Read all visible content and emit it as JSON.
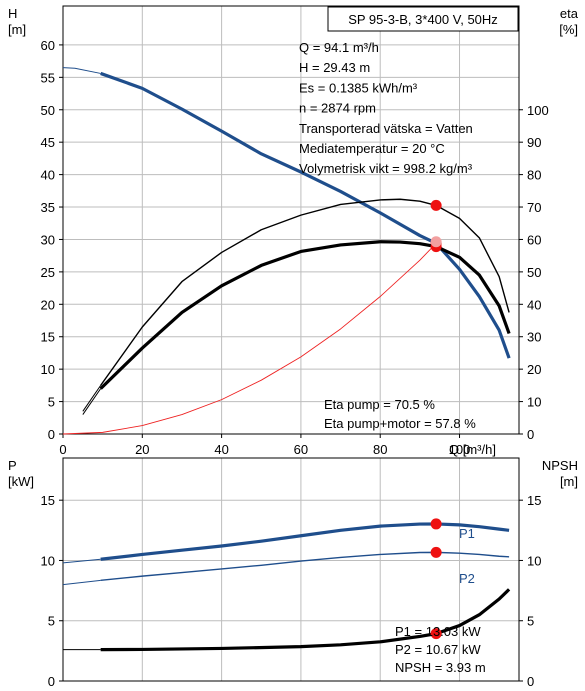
{
  "chart_data": [
    {
      "type": "line",
      "title": "SP 95-3-B, 3*400 V, 50Hz",
      "xlabel": "Q [m³/h]",
      "ylabel_left": "H",
      "ylabel_left_unit": "[m]",
      "ylabel_right": "eta",
      "ylabel_right_unit": "[%]",
      "xlim": [
        0,
        115
      ],
      "ylim_left": [
        0,
        66
      ],
      "ylim_right": [
        0,
        132
      ],
      "xticks": [
        0,
        20,
        40,
        60,
        80,
        100
      ],
      "yticks_left": [
        0,
        5,
        10,
        15,
        20,
        25,
        30,
        35,
        40,
        45,
        50,
        55,
        60
      ],
      "yticks_right": [
        0,
        10,
        20,
        30,
        40,
        50,
        60,
        70,
        80,
        90,
        100
      ],
      "grid": true,
      "series": [
        {
          "key": "head",
          "axis": "left",
          "color": "#1f4e8c",
          "width": 3.2,
          "x": [
            0,
            3,
            9.5,
            20,
            30,
            40,
            50,
            60,
            70,
            80,
            90,
            94.1,
            100,
            105,
            110,
            112.5
          ],
          "y": [
            56.5,
            56.4,
            55.6,
            53.3,
            50.1,
            46.7,
            43.2,
            40.4,
            37.4,
            34.1,
            30.6,
            29.4,
            25.4,
            21.2,
            16.0,
            11.7
          ],
          "dashed_until": 9.5
        },
        {
          "key": "eta_pump",
          "axis": "right",
          "color": "#000000",
          "width": 1.4,
          "x": [
            5,
            9.5,
            20,
            30,
            40,
            50,
            60,
            70,
            80,
            85,
            90,
            94.1,
            100,
            105,
            110,
            112.5
          ],
          "y": [
            7,
            15,
            33,
            47,
            56,
            63,
            67.5,
            70.8,
            72.2,
            72.4,
            71.8,
            70.5,
            66.5,
            60.5,
            48.5,
            37.5
          ],
          "dashed_until": 9.5
        },
        {
          "key": "eta_pump_motor",
          "axis": "right",
          "color": "#000000",
          "width": 3.2,
          "x": [
            5,
            9.5,
            20,
            30,
            40,
            50,
            60,
            70,
            80,
            85,
            90,
            94.1,
            100,
            105,
            110,
            112.5
          ],
          "y": [
            6,
            14,
            26.5,
            37.5,
            45.7,
            52,
            56.3,
            58.3,
            59.3,
            59.2,
            58.7,
            57.8,
            54.5,
            49,
            39.5,
            31
          ],
          "dashed_until": 9.5
        },
        {
          "key": "system_curve",
          "axis": "left",
          "color": "#ee2222",
          "width": 0.9,
          "x": [
            0,
            10,
            20,
            30,
            40,
            50,
            60,
            70,
            80,
            90,
            94.1
          ],
          "y": [
            0,
            0.25,
            1.3,
            3.0,
            5.3,
            8.3,
            11.9,
            16.2,
            21.2,
            26.8,
            29.4
          ]
        }
      ],
      "markers": [
        {
          "x": 94.1,
          "y": 29.43,
          "axis": "left",
          "color": "#ee1111"
        },
        {
          "x": 94.1,
          "y": 70.5,
          "axis": "right",
          "color": "#ee1111"
        },
        {
          "x": 94.1,
          "y": 57.8,
          "axis": "right",
          "color": "#ee1111"
        },
        {
          "x": 94.1,
          "y": 59.3,
          "axis": "right",
          "color": "#f2a0a0"
        }
      ],
      "info": {
        "q": "Q = 94.1 m³/h",
        "h": "H = 29.43 m",
        "es": "Es = 0.1385 kWh/m³",
        "n": "n = 2874 rpm",
        "liquid": "Transporterad vätska = Vatten",
        "temp": "Mediatemperatur = 20 °C",
        "density": "Volymetrisk vikt = 998.2 kg/m³",
        "eta_pump": "Eta pump = 70.5 %",
        "eta_pump_motor": "Eta pump+motor = 57.8 %"
      }
    },
    {
      "type": "line",
      "ylabel_left": "P",
      "ylabel_left_unit": "[kW]",
      "ylabel_right": "NPSH",
      "ylabel_right_unit": "[m]",
      "xlim": [
        0,
        115
      ],
      "ylim_left": [
        0,
        18.5
      ],
      "ylim_right": [
        0,
        18.5
      ],
      "xticks": [
        0,
        20,
        40,
        60,
        80,
        100
      ],
      "yticks_left": [
        0,
        5,
        10,
        15
      ],
      "yticks_right": [
        0,
        5,
        10,
        15
      ],
      "grid": true,
      "series": [
        {
          "key": "P1",
          "name": "P1",
          "axis": "left",
          "color": "#1f4e8c",
          "width": 3.2,
          "x": [
            0,
            9.5,
            20,
            30,
            40,
            50,
            60,
            70,
            80,
            90,
            94.1,
            100,
            105,
            110,
            112.5
          ],
          "y": [
            9.8,
            10.1,
            10.5,
            10.85,
            11.2,
            11.6,
            12.05,
            12.5,
            12.85,
            13.02,
            13.03,
            12.95,
            12.8,
            12.6,
            12.5
          ],
          "dashed_until": 9.5
        },
        {
          "key": "P2",
          "name": "P2",
          "axis": "left",
          "color": "#1f4e8c",
          "width": 1.4,
          "x": [
            0,
            9.5,
            20,
            30,
            40,
            50,
            60,
            70,
            80,
            90,
            94.1,
            100,
            105,
            110,
            112.5
          ],
          "y": [
            8.0,
            8.35,
            8.7,
            9.0,
            9.3,
            9.6,
            9.95,
            10.25,
            10.5,
            10.66,
            10.67,
            10.6,
            10.5,
            10.35,
            10.3
          ],
          "dashed_until": 9.5
        },
        {
          "key": "NPSH",
          "axis": "right",
          "color": "#000000",
          "width": 3.2,
          "x": [
            0,
            9.5,
            20,
            40,
            60,
            70,
            80,
            90,
            94.1,
            100,
            105,
            110,
            112.5
          ],
          "y": [
            2.6,
            2.6,
            2.62,
            2.7,
            2.85,
            3.0,
            3.25,
            3.7,
            3.93,
            4.6,
            5.5,
            6.8,
            7.6
          ],
          "dashed_until": 9.5
        }
      ],
      "series_labels": {
        "p1": "P1",
        "p2": "P2"
      },
      "markers": [
        {
          "x": 94.1,
          "y": 13.03,
          "axis": "left",
          "color": "#ee1111"
        },
        {
          "x": 94.1,
          "y": 10.67,
          "axis": "left",
          "color": "#ee1111"
        },
        {
          "x": 94.1,
          "y": 3.93,
          "axis": "right",
          "color": "#ee1111"
        }
      ],
      "info": {
        "p1": "P1 = 13.03 kW",
        "p2": "P2 = 10.67 kW",
        "npsh": "NPSH = 3.93 m"
      }
    }
  ]
}
